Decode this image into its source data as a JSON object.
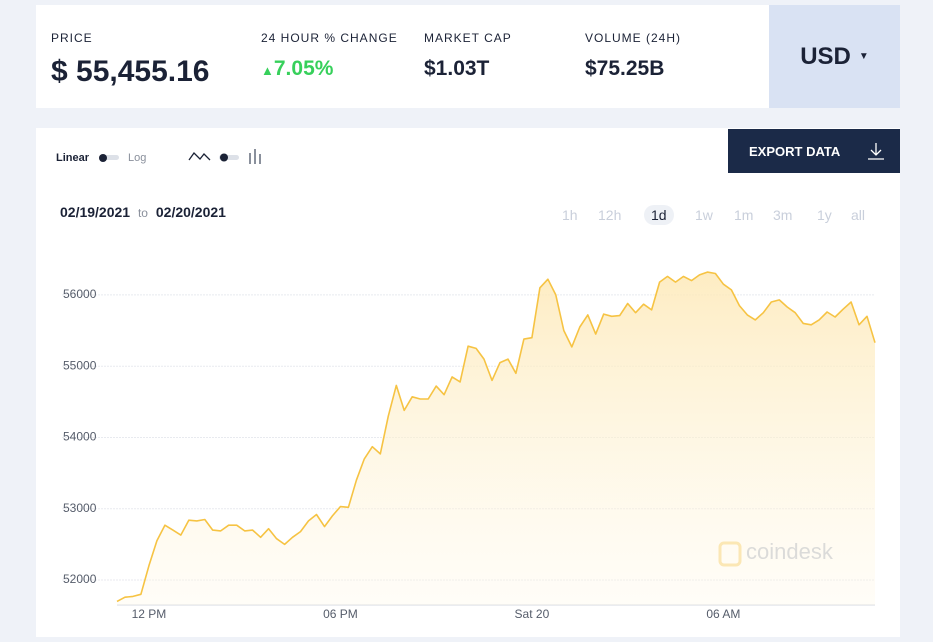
{
  "header": {
    "stats": [
      {
        "label": "PRICE",
        "value": "$ 55,455.16"
      },
      {
        "label": "24 HOUR % CHANGE",
        "value": "7.05%"
      },
      {
        "label": "MARKET CAP",
        "value": "$1.03T"
      },
      {
        "label": "VOLUME (24H)",
        "value": "$75.25B"
      }
    ],
    "currency": "USD"
  },
  "controls": {
    "scale_options": [
      "Linear",
      "Log"
    ],
    "export": "EXPORT DATA",
    "date_from": "02/19/2021",
    "date_sep": "to",
    "date_to": "02/20/2021",
    "ranges": [
      "1h",
      "12h",
      "1d",
      "1w",
      "1m",
      "3m",
      "1y",
      "all"
    ],
    "selected_range": "1d",
    "watermark": "coindesk"
  },
  "chart_data": {
    "type": "line",
    "color": "#f6c343",
    "categories": [
      null,
      null,
      null,
      null,
      "12 PM",
      null,
      null,
      null,
      null,
      null,
      null,
      null,
      null,
      null,
      null,
      null,
      null,
      null,
      null,
      null,
      null,
      null,
      null,
      null,
      null,
      null,
      null,
      null,
      "06 PM",
      null,
      null,
      null,
      null,
      null,
      null,
      null,
      null,
      null,
      null,
      null,
      null,
      null,
      null,
      null,
      null,
      null,
      null,
      null,
      null,
      null,
      null,
      null,
      "Sat 20",
      null,
      null,
      null,
      null,
      null,
      null,
      null,
      null,
      null,
      null,
      null,
      null,
      null,
      null,
      null,
      null,
      null,
      null,
      null,
      null,
      null,
      null,
      null,
      "06 AM",
      null,
      null,
      null,
      null,
      null,
      null,
      null,
      null,
      null,
      null,
      null,
      null,
      null,
      null,
      null,
      null,
      null,
      null,
      null
    ],
    "values": [
      51700,
      51760,
      51770,
      51800,
      52200,
      52550,
      52770,
      52700,
      52630,
      52840,
      52830,
      52850,
      52700,
      52690,
      52770,
      52770,
      52690,
      52700,
      52600,
      52720,
      52580,
      52500,
      52600,
      52680,
      52830,
      52920,
      52750,
      52900,
      53030,
      53020,
      53400,
      53700,
      53870,
      53770,
      54300,
      54730,
      54380,
      54570,
      54540,
      54540,
      54720,
      54600,
      54850,
      54780,
      55280,
      55250,
      55100,
      54800,
      55050,
      55100,
      54900,
      55380,
      55400,
      56100,
      56220,
      56000,
      55500,
      55270,
      55550,
      55720,
      55450,
      55730,
      55700,
      55710,
      55880,
      55750,
      55870,
      55790,
      56180,
      56260,
      56180,
      56260,
      56200,
      56280,
      56320,
      56300,
      56150,
      56070,
      55850,
      55720,
      55650,
      55750,
      55900,
      55930,
      55830,
      55750,
      55600,
      55580,
      55650,
      55760,
      55690,
      55800,
      55900,
      55580,
      55700,
      55330
    ],
    "ylim": [
      51650,
      56700
    ],
    "yticks": [
      52000,
      53000,
      54000,
      55000,
      56000
    ],
    "grid": true
  }
}
